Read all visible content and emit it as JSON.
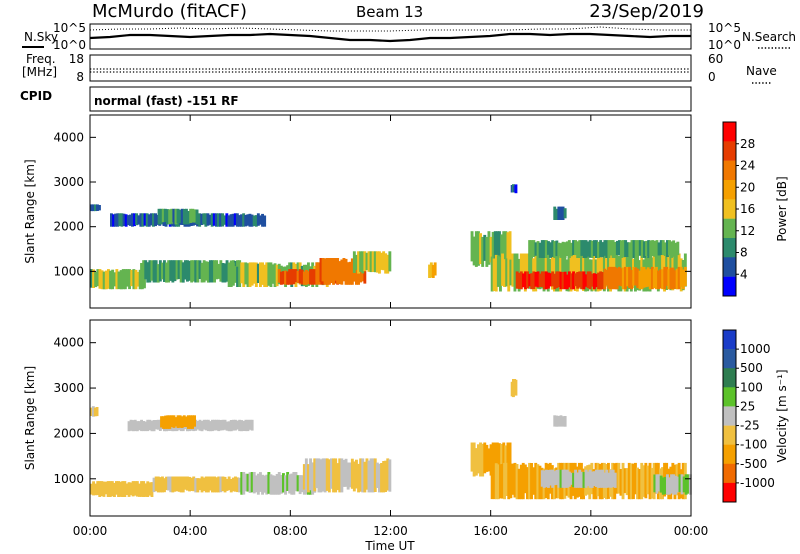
{
  "header": {
    "station": "McMurdo (fitACF)",
    "beam": "Beam 13",
    "date": "23/Sep/2019"
  },
  "noise_panel": {
    "left_label": "N.Sky",
    "right_label": "N.Search",
    "left_ticks": [
      "10^5",
      "10^0"
    ],
    "right_ticks": [
      "10^5",
      "10^0"
    ]
  },
  "freq_panel": {
    "left_label_1": "Freq.",
    "left_label_2": "[MHz]",
    "right_label": "Nave",
    "left_ticks": [
      "18",
      "8"
    ],
    "right_ticks": [
      "60",
      "0"
    ]
  },
  "cpid_panel": {
    "left_label": "CPID",
    "mode_text": "normal (fast) -151 RF"
  },
  "x_axis": {
    "title": "Time UT",
    "tick_labels": [
      "00:00",
      "04:00",
      "08:00",
      "12:00",
      "16:00",
      "20:00",
      "00:00"
    ]
  },
  "colors": {
    "power_scale": [
      "#0000ff",
      "#1f4fa0",
      "#2c8a6c",
      "#64b450",
      "#f0c020",
      "#f5a000",
      "#f07800",
      "#e63c00",
      "#ff0000"
    ],
    "velocity_scale": [
      "#1a3cc8",
      "#2a5aa0",
      "#2e7d50",
      "#5cc22a",
      "#c0c0c0",
      "#f0c040",
      "#f5a000",
      "#f06a00",
      "#ff0000"
    ]
  },
  "chart_data": [
    {
      "type": "heatmap",
      "variable": "Power",
      "ylabel": "Slant Range [km]",
      "xlabel": "Time UT",
      "xlim": [
        0,
        24
      ],
      "ylim": [
        180,
        4500
      ],
      "y_ticks": [
        "1000",
        "2000",
        "3000",
        "4000"
      ],
      "colorbar": {
        "label": "Power [dB]",
        "tick_labels": [
          "4",
          "8",
          "12",
          "16",
          "20",
          "24",
          "28"
        ],
        "range": [
          0,
          32
        ]
      },
      "regions": [
        {
          "t0": 0.0,
          "t1": 0.4,
          "r0": 2350,
          "r1": 2500,
          "value": 6
        },
        {
          "t0": 0.0,
          "t1": 2.2,
          "r0": 600,
          "r1": 1050,
          "value": 13
        },
        {
          "t0": 2.0,
          "t1": 6.0,
          "r0": 750,
          "r1": 1250,
          "value": 11
        },
        {
          "t0": 5.5,
          "t1": 9.5,
          "r0": 650,
          "r1": 1200,
          "value": 13
        },
        {
          "t0": 7.5,
          "t1": 10.0,
          "r0": 700,
          "r1": 1050,
          "value": 26
        },
        {
          "t0": 9.0,
          "t1": 11.0,
          "r0": 700,
          "r1": 1300,
          "value": 24
        },
        {
          "t0": 10.5,
          "t1": 12.0,
          "r0": 950,
          "r1": 1450,
          "value": 15
        },
        {
          "t0": 0.8,
          "t1": 7.0,
          "r0": 2000,
          "r1": 2300,
          "value": 6
        },
        {
          "t0": 2.7,
          "t1": 4.3,
          "r0": 2050,
          "r1": 2400,
          "value": 10
        },
        {
          "t0": 13.5,
          "t1": 13.8,
          "r0": 850,
          "r1": 1200,
          "value": 18
        },
        {
          "t0": 15.2,
          "t1": 16.8,
          "r0": 1100,
          "r1": 1900,
          "value": 13
        },
        {
          "t0": 16.0,
          "t1": 23.8,
          "r0": 550,
          "r1": 1400,
          "value": 14
        },
        {
          "t0": 17.0,
          "t1": 20.5,
          "r0": 600,
          "r1": 1000,
          "value": 28
        },
        {
          "t0": 20.5,
          "t1": 23.8,
          "r0": 600,
          "r1": 1100,
          "value": 22
        },
        {
          "t0": 17.5,
          "t1": 23.5,
          "r0": 1300,
          "r1": 1700,
          "value": 11
        },
        {
          "t0": 18.5,
          "t1": 19.0,
          "r0": 2150,
          "r1": 2450,
          "value": 6
        },
        {
          "t0": 16.8,
          "t1": 17.0,
          "r0": 2750,
          "r1": 2950,
          "value": 6
        }
      ]
    },
    {
      "type": "heatmap",
      "variable": "Velocity",
      "ylabel": "Slant Range [km]",
      "xlabel": "Time UT",
      "xlim": [
        0,
        24
      ],
      "ylim": [
        180,
        4500
      ],
      "y_ticks": [
        "1000",
        "2000",
        "3000",
        "4000"
      ],
      "colorbar": {
        "label": "Velocity [m s⁻¹]",
        "tick_labels": [
          "1000",
          "500",
          "100",
          "25",
          "-25",
          "-100",
          "-500",
          "-1000"
        ],
        "range": [
          -1000,
          1000
        ]
      },
      "regions": [
        {
          "t0": 0.0,
          "t1": 0.3,
          "r0": 2350,
          "r1": 2600,
          "value": -150
        },
        {
          "t0": 0.0,
          "t1": 2.5,
          "r0": 600,
          "r1": 950,
          "value": -250
        },
        {
          "t0": 2.5,
          "t1": 6.0,
          "r0": 700,
          "r1": 1050,
          "value": -150
        },
        {
          "t0": 6.0,
          "t1": 9.0,
          "r0": 650,
          "r1": 1150,
          "value": 80
        },
        {
          "t0": 8.5,
          "t1": 12.0,
          "r0": 700,
          "r1": 1450,
          "value": -120
        },
        {
          "t0": 1.5,
          "t1": 6.5,
          "r0": 2050,
          "r1": 2300,
          "value": 0
        },
        {
          "t0": 2.8,
          "t1": 4.2,
          "r0": 2100,
          "r1": 2400,
          "value": -400
        },
        {
          "t0": 15.2,
          "t1": 16.8,
          "r0": 1050,
          "r1": 1800,
          "value": -350
        },
        {
          "t0": 16.0,
          "t1": 23.8,
          "r0": 550,
          "r1": 1350,
          "value": -350
        },
        {
          "t0": 18.0,
          "t1": 21.0,
          "r0": 800,
          "r1": 1200,
          "value": 60
        },
        {
          "t0": 22.5,
          "t1": 24.0,
          "r0": 650,
          "r1": 1100,
          "value": 80
        },
        {
          "t0": 18.5,
          "t1": 19.0,
          "r0": 2150,
          "r1": 2400,
          "value": 40
        },
        {
          "t0": 16.8,
          "t1": 17.0,
          "r0": 2800,
          "r1": 3200,
          "value": -200
        }
      ]
    }
  ]
}
